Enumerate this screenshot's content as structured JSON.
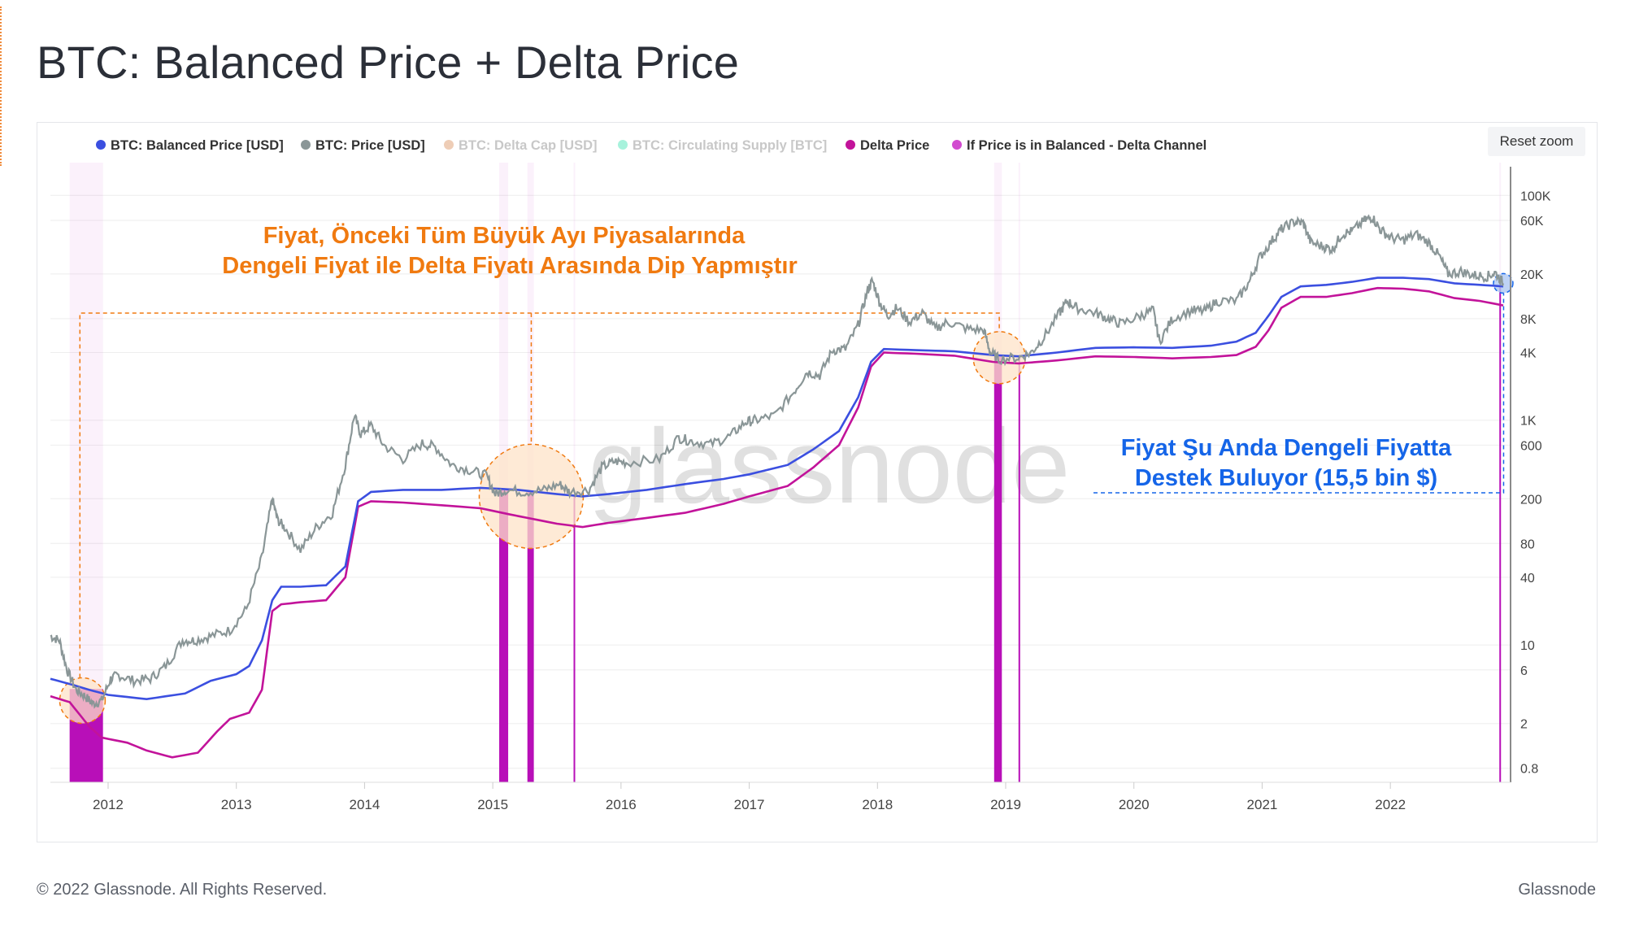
{
  "page": {
    "title": "BTC: Balanced Price + Delta Price",
    "reset_zoom_label": "Reset zoom",
    "footer_copyright": "© 2022 Glassnode. All Rights Reserved.",
    "footer_brand": "Glassnode",
    "watermark": "glassnode"
  },
  "colors": {
    "balanced": "#3b4fe0",
    "price": "#8a9697",
    "delta_cap": "#e0a47a",
    "supply": "#5ee8c0",
    "delta": "#c2139a",
    "channel": "#d24bd0",
    "orange_annotation": "#f07a10",
    "blue_annotation": "#1565e8"
  },
  "chart_data": {
    "type": "line",
    "title": "BTC: Balanced Price + Delta Price",
    "y_scale": "log",
    "ylim": [
      0.6,
      180000
    ],
    "xlim": [
      2011.55,
      2022.95
    ],
    "y_ticks": [
      {
        "value": 100000,
        "label": "100K"
      },
      {
        "value": 60000,
        "label": "60K"
      },
      {
        "value": 20000,
        "label": "20K"
      },
      {
        "value": 8000,
        "label": "8K"
      },
      {
        "value": 4000,
        "label": "4K"
      },
      {
        "value": 1000,
        "label": "1K"
      },
      {
        "value": 600,
        "label": "600"
      },
      {
        "value": 200,
        "label": "200"
      },
      {
        "value": 80,
        "label": "80"
      },
      {
        "value": 40,
        "label": "40"
      },
      {
        "value": 10,
        "label": "10"
      },
      {
        "value": 6,
        "label": "6"
      },
      {
        "value": 2,
        "label": "2"
      },
      {
        "value": 0.8,
        "label": "0.8"
      }
    ],
    "x_ticks": [
      {
        "value": 2012,
        "label": "2012"
      },
      {
        "value": 2013,
        "label": "2013"
      },
      {
        "value": 2014,
        "label": "2014"
      },
      {
        "value": 2015,
        "label": "2015"
      },
      {
        "value": 2016,
        "label": "2016"
      },
      {
        "value": 2017,
        "label": "2017"
      },
      {
        "value": 2018,
        "label": "2018"
      },
      {
        "value": 2019,
        "label": "2019"
      },
      {
        "value": 2020,
        "label": "2020"
      },
      {
        "value": 2021,
        "label": "2021"
      },
      {
        "value": 2022,
        "label": "2022"
      }
    ],
    "legend": [
      {
        "label": "BTC: Balanced Price [USD]",
        "color": "#3b4fe0",
        "active": true
      },
      {
        "label": "BTC: Price [USD]",
        "color": "#8a9697",
        "active": true
      },
      {
        "label": "BTC: Delta Cap [USD]",
        "color": "#e0a47a",
        "active": false
      },
      {
        "label": "BTC: Circulating Supply [BTC]",
        "color": "#5ee8c0",
        "active": false
      },
      {
        "label": "Delta Price",
        "color": "#c2139a",
        "active": true
      },
      {
        "label": "If Price is in Balanced - Delta Channel",
        "color": "#d24bd0",
        "active": true
      }
    ],
    "series": [
      {
        "name": "BTC: Price [USD]",
        "points": [
          [
            2011.55,
            12
          ],
          [
            2011.62,
            11
          ],
          [
            2011.68,
            6
          ],
          [
            2011.75,
            4
          ],
          [
            2011.82,
            3.5
          ],
          [
            2011.88,
            3
          ],
          [
            2011.95,
            3.2
          ],
          [
            2012.02,
            5
          ],
          [
            2012.08,
            5.4
          ],
          [
            2012.2,
            4.8
          ],
          [
            2012.33,
            5
          ],
          [
            2012.45,
            6.5
          ],
          [
            2012.58,
            11
          ],
          [
            2012.68,
            11
          ],
          [
            2012.8,
            12
          ],
          [
            2012.95,
            13.5
          ],
          [
            2013.08,
            21
          ],
          [
            2013.2,
            60
          ],
          [
            2013.28,
            200
          ],
          [
            2013.32,
            130
          ],
          [
            2013.38,
            110
          ],
          [
            2013.5,
            70
          ],
          [
            2013.62,
            110
          ],
          [
            2013.75,
            150
          ],
          [
            2013.85,
            400
          ],
          [
            2013.92,
            1100
          ],
          [
            2013.97,
            750
          ],
          [
            2014.05,
            900
          ],
          [
            2014.15,
            600
          ],
          [
            2014.3,
            450
          ],
          [
            2014.45,
            620
          ],
          [
            2014.55,
            580
          ],
          [
            2014.68,
            400
          ],
          [
            2014.82,
            360
          ],
          [
            2014.95,
            320
          ],
          [
            2015.02,
            220
          ],
          [
            2015.1,
            240
          ],
          [
            2015.25,
            230
          ],
          [
            2015.4,
            240
          ],
          [
            2015.52,
            270
          ],
          [
            2015.6,
            230
          ],
          [
            2015.75,
            240
          ],
          [
            2015.85,
            380
          ],
          [
            2015.95,
            430
          ],
          [
            2016.05,
            420
          ],
          [
            2016.3,
            450
          ],
          [
            2016.45,
            700
          ],
          [
            2016.55,
            650
          ],
          [
            2016.7,
            610
          ],
          [
            2016.85,
            720
          ],
          [
            2016.97,
            960
          ],
          [
            2017.05,
            1000
          ],
          [
            2017.2,
            1100
          ],
          [
            2017.35,
            1800
          ],
          [
            2017.45,
            2700
          ],
          [
            2017.55,
            2500
          ],
          [
            2017.65,
            4200
          ],
          [
            2017.75,
            4300
          ],
          [
            2017.85,
            7000
          ],
          [
            2017.92,
            14000
          ],
          [
            2017.96,
            17500
          ],
          [
            2018.02,
            11000
          ],
          [
            2018.08,
            8500
          ],
          [
            2018.15,
            10000
          ],
          [
            2018.25,
            7500
          ],
          [
            2018.35,
            9000
          ],
          [
            2018.45,
            6500
          ],
          [
            2018.55,
            7500
          ],
          [
            2018.7,
            6500
          ],
          [
            2018.83,
            6300
          ],
          [
            2018.88,
            4000
          ],
          [
            2018.95,
            3500
          ],
          [
            2019.1,
            3600
          ],
          [
            2019.2,
            4000
          ],
          [
            2019.3,
            5500
          ],
          [
            2019.42,
            9000
          ],
          [
            2019.48,
            11500
          ],
          [
            2019.55,
            10000
          ],
          [
            2019.7,
            9000
          ],
          [
            2019.8,
            8000
          ],
          [
            2019.9,
            7200
          ],
          [
            2020.05,
            8500
          ],
          [
            2020.15,
            9500
          ],
          [
            2020.2,
            5000
          ],
          [
            2020.3,
            8000
          ],
          [
            2020.45,
            9500
          ],
          [
            2020.55,
            9300
          ],
          [
            2020.65,
            11500
          ],
          [
            2020.8,
            11500
          ],
          [
            2020.9,
            17000
          ],
          [
            2020.98,
            28000
          ],
          [
            2021.08,
            40000
          ],
          [
            2021.15,
            50000
          ],
          [
            2021.25,
            58000
          ],
          [
            2021.32,
            57000
          ],
          [
            2021.38,
            38000
          ],
          [
            2021.48,
            35000
          ],
          [
            2021.55,
            33000
          ],
          [
            2021.62,
            45000
          ],
          [
            2021.7,
            48000
          ],
          [
            2021.8,
            60000
          ],
          [
            2021.86,
            64000
          ],
          [
            2021.92,
            50000
          ],
          [
            2022.0,
            42000
          ],
          [
            2022.1,
            40000
          ],
          [
            2022.2,
            45000
          ],
          [
            2022.3,
            38000
          ],
          [
            2022.38,
            29000
          ],
          [
            2022.45,
            20000
          ],
          [
            2022.55,
            21000
          ],
          [
            2022.65,
            19500
          ],
          [
            2022.75,
            19000
          ],
          [
            2022.82,
            20500
          ],
          [
            2022.88,
            16500
          ]
        ]
      },
      {
        "name": "BTC: Balanced Price [USD]",
        "points": [
          [
            2011.55,
            5
          ],
          [
            2011.7,
            4.5
          ],
          [
            2011.85,
            4
          ],
          [
            2012.0,
            3.6
          ],
          [
            2012.3,
            3.3
          ],
          [
            2012.6,
            3.7
          ],
          [
            2012.8,
            4.8
          ],
          [
            2013.0,
            5.5
          ],
          [
            2013.1,
            6.5
          ],
          [
            2013.2,
            11
          ],
          [
            2013.28,
            25
          ],
          [
            2013.35,
            33
          ],
          [
            2013.5,
            33
          ],
          [
            2013.7,
            34
          ],
          [
            2013.85,
            50
          ],
          [
            2013.95,
            190
          ],
          [
            2014.05,
            230
          ],
          [
            2014.3,
            240
          ],
          [
            2014.6,
            240
          ],
          [
            2014.9,
            250
          ],
          [
            2015.2,
            240
          ],
          [
            2015.5,
            220
          ],
          [
            2015.7,
            210
          ],
          [
            2015.9,
            220
          ],
          [
            2016.2,
            240
          ],
          [
            2016.5,
            270
          ],
          [
            2016.8,
            300
          ],
          [
            2017.0,
            330
          ],
          [
            2017.3,
            400
          ],
          [
            2017.5,
            550
          ],
          [
            2017.7,
            800
          ],
          [
            2017.85,
            1600
          ],
          [
            2017.95,
            3300
          ],
          [
            2018.05,
            4300
          ],
          [
            2018.3,
            4200
          ],
          [
            2018.6,
            4100
          ],
          [
            2018.9,
            3800
          ],
          [
            2019.1,
            3700
          ],
          [
            2019.4,
            4000
          ],
          [
            2019.7,
            4400
          ],
          [
            2020.0,
            4450
          ],
          [
            2020.3,
            4400
          ],
          [
            2020.6,
            4600
          ],
          [
            2020.8,
            5000
          ],
          [
            2020.95,
            6000
          ],
          [
            2021.05,
            8500
          ],
          [
            2021.15,
            12500
          ],
          [
            2021.3,
            15500
          ],
          [
            2021.5,
            16000
          ],
          [
            2021.7,
            17000
          ],
          [
            2021.9,
            18500
          ],
          [
            2022.1,
            18500
          ],
          [
            2022.3,
            18000
          ],
          [
            2022.5,
            16500
          ],
          [
            2022.7,
            16000
          ],
          [
            2022.88,
            15500
          ]
        ]
      },
      {
        "name": "Delta Price",
        "points": [
          [
            2011.55,
            3.5
          ],
          [
            2011.7,
            3.1
          ],
          [
            2011.85,
            1.9
          ],
          [
            2011.95,
            1.5
          ],
          [
            2012.15,
            1.35
          ],
          [
            2012.3,
            1.15
          ],
          [
            2012.5,
            1.0
          ],
          [
            2012.7,
            1.1
          ],
          [
            2012.85,
            1.7
          ],
          [
            2012.95,
            2.2
          ],
          [
            2013.1,
            2.5
          ],
          [
            2013.2,
            4
          ],
          [
            2013.28,
            20
          ],
          [
            2013.35,
            23
          ],
          [
            2013.5,
            24
          ],
          [
            2013.7,
            25
          ],
          [
            2013.85,
            40
          ],
          [
            2013.95,
            170
          ],
          [
            2014.05,
            190
          ],
          [
            2014.3,
            185
          ],
          [
            2014.6,
            175
          ],
          [
            2014.9,
            165
          ],
          [
            2015.2,
            140
          ],
          [
            2015.5,
            120
          ],
          [
            2015.7,
            112
          ],
          [
            2015.9,
            122
          ],
          [
            2016.2,
            135
          ],
          [
            2016.5,
            150
          ],
          [
            2016.8,
            180
          ],
          [
            2017.0,
            210
          ],
          [
            2017.3,
            260
          ],
          [
            2017.5,
            380
          ],
          [
            2017.7,
            600
          ],
          [
            2017.85,
            1300
          ],
          [
            2017.95,
            3000
          ],
          [
            2018.05,
            4000
          ],
          [
            2018.3,
            3900
          ],
          [
            2018.6,
            3750
          ],
          [
            2018.9,
            3300
          ],
          [
            2019.1,
            3200
          ],
          [
            2019.4,
            3400
          ],
          [
            2019.7,
            3700
          ],
          [
            2020.0,
            3650
          ],
          [
            2020.3,
            3550
          ],
          [
            2020.6,
            3650
          ],
          [
            2020.8,
            3800
          ],
          [
            2020.95,
            4500
          ],
          [
            2021.05,
            6300
          ],
          [
            2021.15,
            10000
          ],
          [
            2021.3,
            12500
          ],
          [
            2021.5,
            12500
          ],
          [
            2021.7,
            13500
          ],
          [
            2021.9,
            15000
          ],
          [
            2022.1,
            14800
          ],
          [
            2022.3,
            14000
          ],
          [
            2022.5,
            12200
          ],
          [
            2022.7,
            11500
          ],
          [
            2022.88,
            10500
          ]
        ]
      },
      {
        "name": "If Price is in Balanced - Delta Channel",
        "intervals": [
          [
            2011.7,
            2011.96
          ],
          [
            2015.05,
            2015.12
          ],
          [
            2015.27,
            2015.32
          ],
          [
            2015.63,
            2015.64
          ],
          [
            2018.91,
            2018.97
          ],
          [
            2019.1,
            2019.11
          ],
          [
            2022.85,
            2022.86
          ]
        ]
      }
    ],
    "annotations": {
      "orange_line1": "Fiyat, Önceki Tüm Büyük Ayı Piyasalarında",
      "orange_line2": "Dengeli Fiyat ile Delta Fiyatı Arasında Dip Yapmıştır",
      "blue_line1": "Fiyat Şu Anda Dengeli Fiyatta",
      "blue_line2": "Destek Buluyor (15,5 bin $)"
    },
    "highlight_circles": [
      {
        "x": 2011.8,
        "y": 3.2
      },
      {
        "x": 2015.3,
        "y": 210
      },
      {
        "x": 2018.95,
        "y": 3600
      },
      {
        "x": 2022.88,
        "y": 16500
      }
    ]
  }
}
